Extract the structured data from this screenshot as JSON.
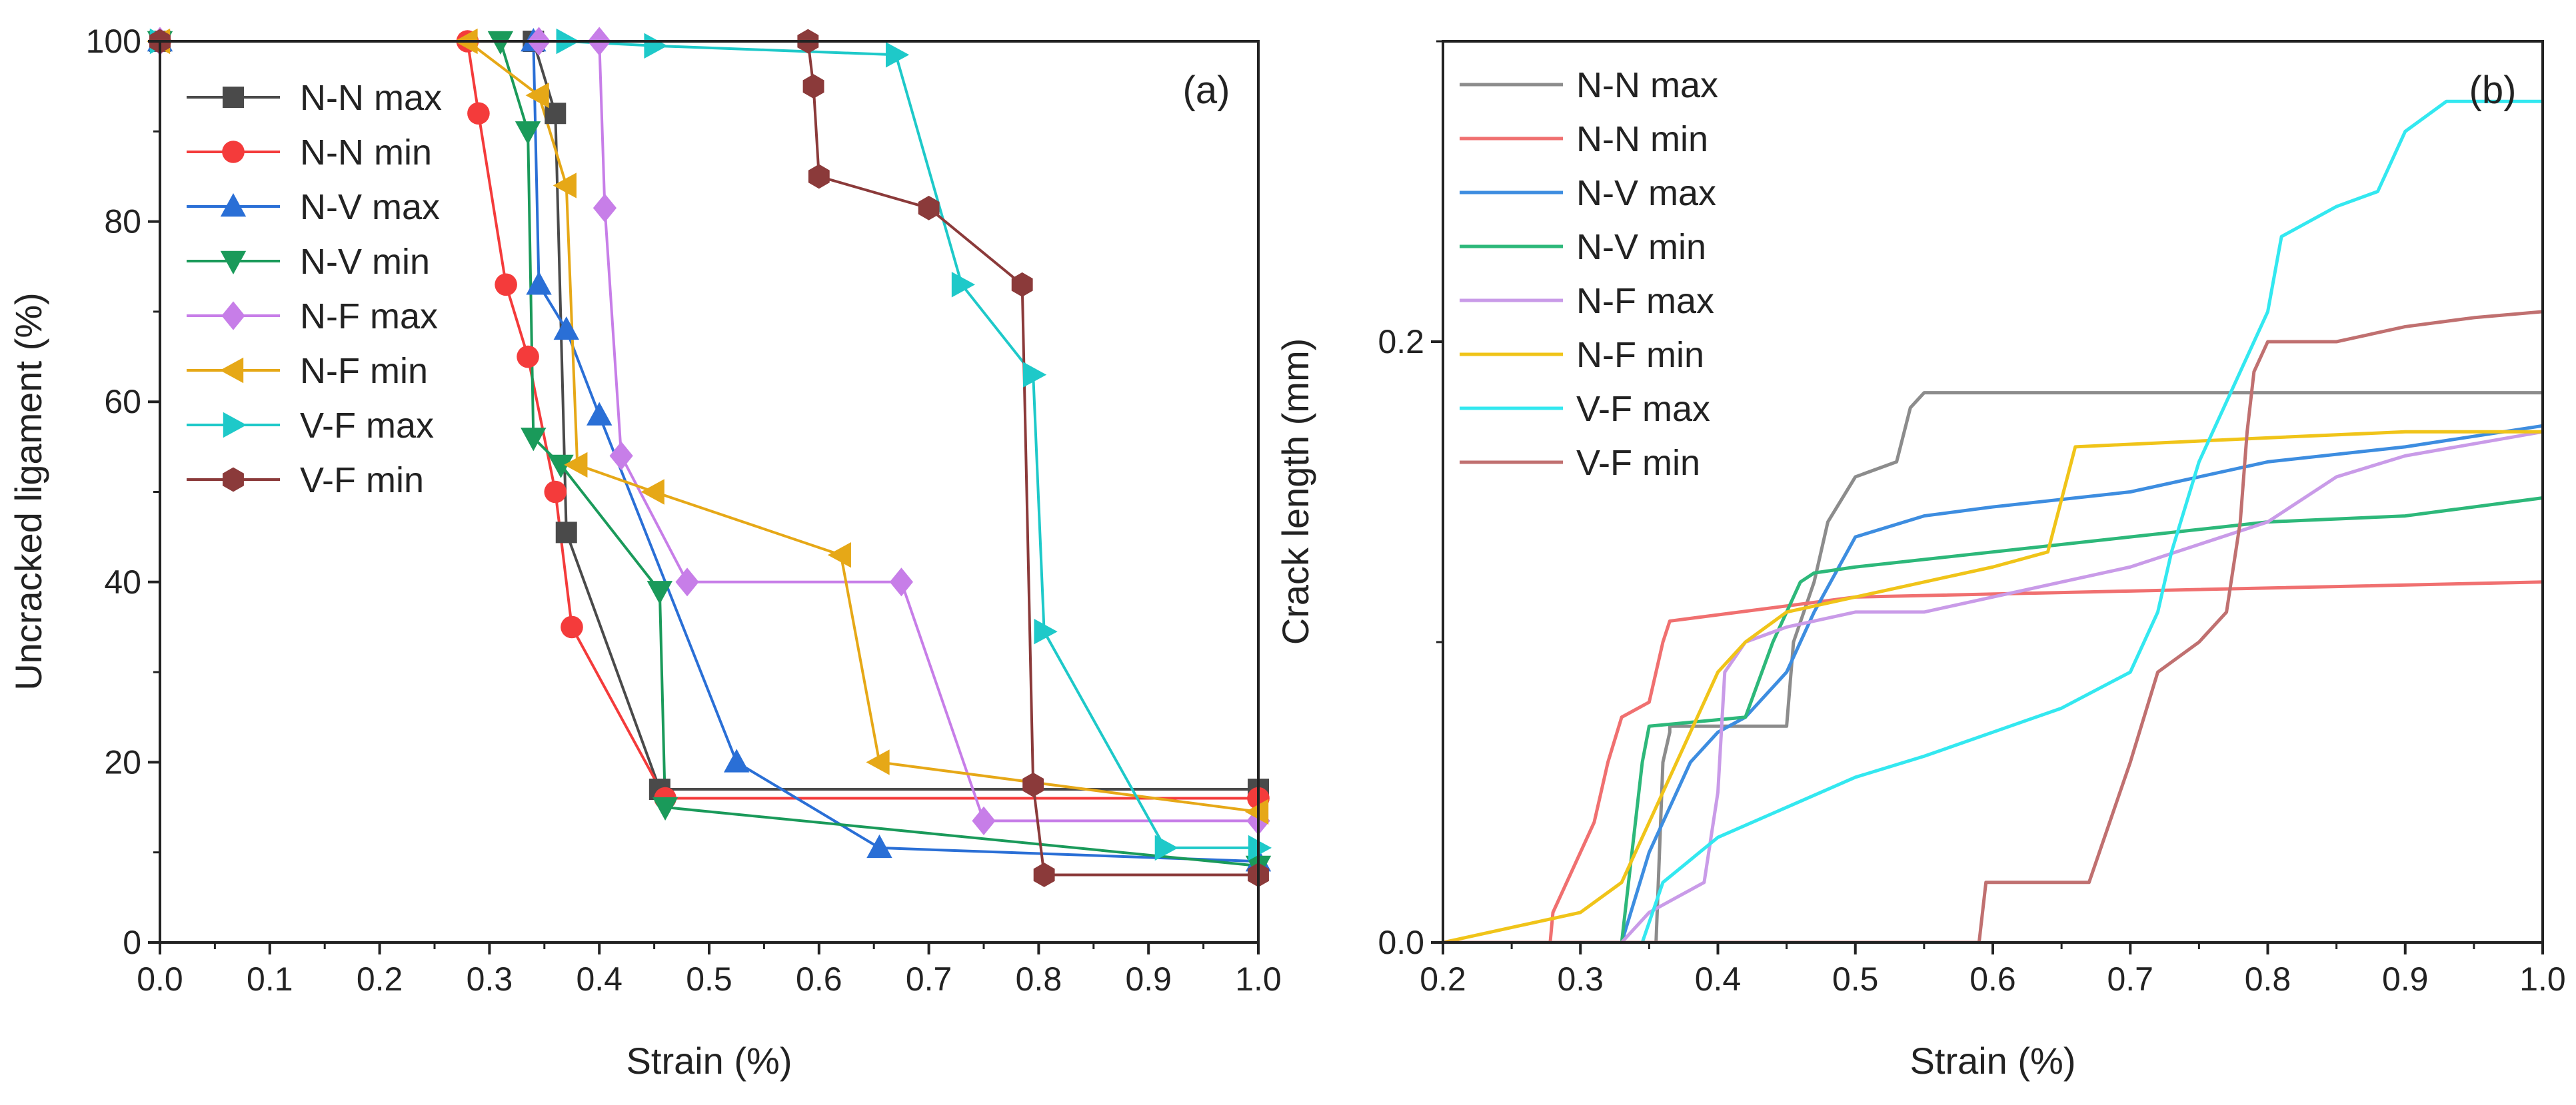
{
  "chart_data": [
    {
      "type": "line",
      "panel_label": "(a)",
      "xlabel": "Strain (%)",
      "ylabel": "Uncracked ligament (%)",
      "xlim": [
        0.0,
        1.0
      ],
      "ylim": [
        0,
        100
      ],
      "xticks": [
        "0.0",
        "0.1",
        "0.2",
        "0.3",
        "0.4",
        "0.5",
        "0.6",
        "0.7",
        "0.8",
        "0.9",
        "1.0"
      ],
      "yticks": [
        "0",
        "20",
        "40",
        "60",
        "80",
        "100"
      ],
      "legend_position": "top-left",
      "markers": true,
      "series": [
        {
          "name": "N-N max",
          "color": "#4a4a4a",
          "marker": "square",
          "x": [
            0.0,
            0.34,
            0.36,
            0.37,
            0.455,
            1.0
          ],
          "y": [
            100,
            100,
            92,
            45.5,
            17,
            17
          ]
        },
        {
          "name": "N-N min",
          "color": "#f43b3b",
          "marker": "circle",
          "x": [
            0.0,
            0.28,
            0.29,
            0.315,
            0.335,
            0.36,
            0.375,
            0.46,
            1.0
          ],
          "y": [
            100,
            100,
            92,
            73,
            65,
            50,
            35,
            16,
            16
          ]
        },
        {
          "name": "N-V max",
          "color": "#2a6fd6",
          "marker": "triangle-up",
          "x": [
            0.0,
            0.34,
            0.345,
            0.37,
            0.4,
            0.525,
            0.655,
            1.0
          ],
          "y": [
            100,
            100,
            73,
            68,
            58.5,
            20,
            10.5,
            9
          ]
        },
        {
          "name": "N-V min",
          "color": "#1a9a5a",
          "marker": "triangle-down",
          "x": [
            0.0,
            0.31,
            0.335,
            0.34,
            0.365,
            0.455,
            0.46,
            1.0
          ],
          "y": [
            100,
            100,
            90,
            56,
            53,
            39,
            15,
            8.5
          ]
        },
        {
          "name": "N-F max",
          "color": "#c77ee8",
          "marker": "diamond",
          "x": [
            0.0,
            0.345,
            0.4,
            0.405,
            0.42,
            0.48,
            0.675,
            0.75,
            1.0
          ],
          "y": [
            100,
            100,
            100,
            81.5,
            54,
            40,
            40,
            13.5,
            13.5
          ]
        },
        {
          "name": "N-F min",
          "color": "#e6a817",
          "marker": "triangle-left",
          "x": [
            0.0,
            0.28,
            0.345,
            0.37,
            0.38,
            0.45,
            0.62,
            0.655,
            1.0
          ],
          "y": [
            100,
            100,
            94,
            84,
            53,
            50,
            43,
            20,
            14.5
          ]
        },
        {
          "name": "V-F max",
          "color": "#1ec9c9",
          "marker": "triangle-right",
          "x": [
            0.0,
            0.37,
            0.45,
            0.67,
            0.73,
            0.795,
            0.805,
            0.915,
            1.0
          ],
          "y": [
            100,
            100,
            99.5,
            98.5,
            73,
            63,
            34.5,
            10.5,
            10.5
          ]
        },
        {
          "name": "V-F min",
          "color": "#8b3a3a",
          "marker": "hexagon",
          "x": [
            0.0,
            0.59,
            0.595,
            0.6,
            0.7,
            0.785,
            0.795,
            0.805,
            1.0
          ],
          "y": [
            100,
            100,
            95,
            85,
            81.5,
            73,
            17.5,
            7.5,
            7.5
          ]
        }
      ]
    },
    {
      "type": "line",
      "panel_label": "(b)",
      "xlabel": "Strain (%)",
      "ylabel": "Crack length (mm)",
      "xlim": [
        0.2,
        1.0
      ],
      "ylim": [
        0.0,
        0.3
      ],
      "xticks": [
        "0.2",
        "0.3",
        "0.4",
        "0.5",
        "0.6",
        "0.7",
        "0.8",
        "0.9",
        "1.0"
      ],
      "yticks": [
        "0.0",
        "0.2"
      ],
      "ytick_values": [
        0.0,
        0.2
      ],
      "legend_position": "top-left",
      "markers": false,
      "series": [
        {
          "name": "N-N max",
          "color": "#8c8c8c",
          "x": [
            0.2,
            0.355,
            0.36,
            0.365,
            0.365,
            0.45,
            0.455,
            0.47,
            0.48,
            0.5,
            0.53,
            0.54,
            0.55,
            1.0
          ],
          "y": [
            0,
            0,
            0.06,
            0.07,
            0.072,
            0.072,
            0.1,
            0.12,
            0.14,
            0.155,
            0.16,
            0.178,
            0.183,
            0.183
          ]
        },
        {
          "name": "N-N min",
          "color": "#f07070",
          "x": [
            0.2,
            0.278,
            0.28,
            0.29,
            0.3,
            0.31,
            0.315,
            0.32,
            0.33,
            0.35,
            0.36,
            0.365,
            0.5,
            0.7,
            1.0
          ],
          "y": [
            0,
            0,
            0.01,
            0.02,
            0.03,
            0.04,
            0.05,
            0.06,
            0.075,
            0.08,
            0.1,
            0.107,
            0.115,
            0.117,
            0.12
          ]
        },
        {
          "name": "N-V max",
          "color": "#3d8de0",
          "x": [
            0.2,
            0.33,
            0.35,
            0.37,
            0.38,
            0.4,
            0.42,
            0.45,
            0.47,
            0.5,
            0.55,
            0.6,
            0.7,
            0.8,
            0.9,
            1.0
          ],
          "y": [
            0,
            0,
            0.03,
            0.05,
            0.06,
            0.07,
            0.075,
            0.09,
            0.11,
            0.135,
            0.142,
            0.145,
            0.15,
            0.16,
            0.165,
            0.172
          ]
        },
        {
          "name": "N-V min",
          "color": "#2db87a",
          "x": [
            0.2,
            0.33,
            0.335,
            0.34,
            0.345,
            0.35,
            0.42,
            0.44,
            0.46,
            0.47,
            0.5,
            0.6,
            0.7,
            0.8,
            0.9,
            1.0
          ],
          "y": [
            0,
            0,
            0.02,
            0.04,
            0.06,
            0.072,
            0.075,
            0.1,
            0.12,
            0.123,
            0.125,
            0.13,
            0.135,
            0.14,
            0.142,
            0.148
          ]
        },
        {
          "name": "N-F max",
          "color": "#c99be8",
          "x": [
            0.2,
            0.33,
            0.35,
            0.37,
            0.39,
            0.4,
            0.405,
            0.42,
            0.45,
            0.5,
            0.55,
            0.6,
            0.65,
            0.7,
            0.8,
            0.85,
            0.9,
            1.0
          ],
          "y": [
            0,
            0,
            0.01,
            0.015,
            0.02,
            0.05,
            0.09,
            0.1,
            0.105,
            0.11,
            0.11,
            0.115,
            0.12,
            0.125,
            0.14,
            0.155,
            0.162,
            0.17
          ]
        },
        {
          "name": "N-F min",
          "color": "#f0c419",
          "x": [
            0.2,
            0.25,
            0.3,
            0.33,
            0.36,
            0.38,
            0.4,
            0.42,
            0.45,
            0.5,
            0.55,
            0.6,
            0.64,
            0.66,
            0.8,
            0.9,
            1.0
          ],
          "y": [
            0,
            0.005,
            0.01,
            0.02,
            0.05,
            0.07,
            0.09,
            0.1,
            0.11,
            0.115,
            0.12,
            0.125,
            0.13,
            0.165,
            0.168,
            0.17,
            0.17
          ]
        },
        {
          "name": "V-F max",
          "color": "#33e8f0",
          "x": [
            0.2,
            0.345,
            0.36,
            0.4,
            0.45,
            0.5,
            0.55,
            0.6,
            0.65,
            0.7,
            0.72,
            0.73,
            0.75,
            0.78,
            0.8,
            0.81,
            0.85,
            0.88,
            0.9,
            0.93,
            1.0
          ],
          "y": [
            0,
            0,
            0.02,
            0.035,
            0.045,
            0.055,
            0.062,
            0.07,
            0.078,
            0.09,
            0.11,
            0.13,
            0.16,
            0.19,
            0.21,
            0.235,
            0.245,
            0.25,
            0.27,
            0.28,
            0.28
          ]
        },
        {
          "name": "V-F min",
          "color": "#c07070",
          "x": [
            0.2,
            0.59,
            0.595,
            0.67,
            0.7,
            0.72,
            0.75,
            0.77,
            0.78,
            0.785,
            0.79,
            0.8,
            0.85,
            0.9,
            0.95,
            1.0
          ],
          "y": [
            0,
            0,
            0.02,
            0.02,
            0.06,
            0.09,
            0.1,
            0.11,
            0.14,
            0.17,
            0.19,
            0.2,
            0.2,
            0.205,
            0.208,
            0.21
          ]
        }
      ]
    }
  ]
}
